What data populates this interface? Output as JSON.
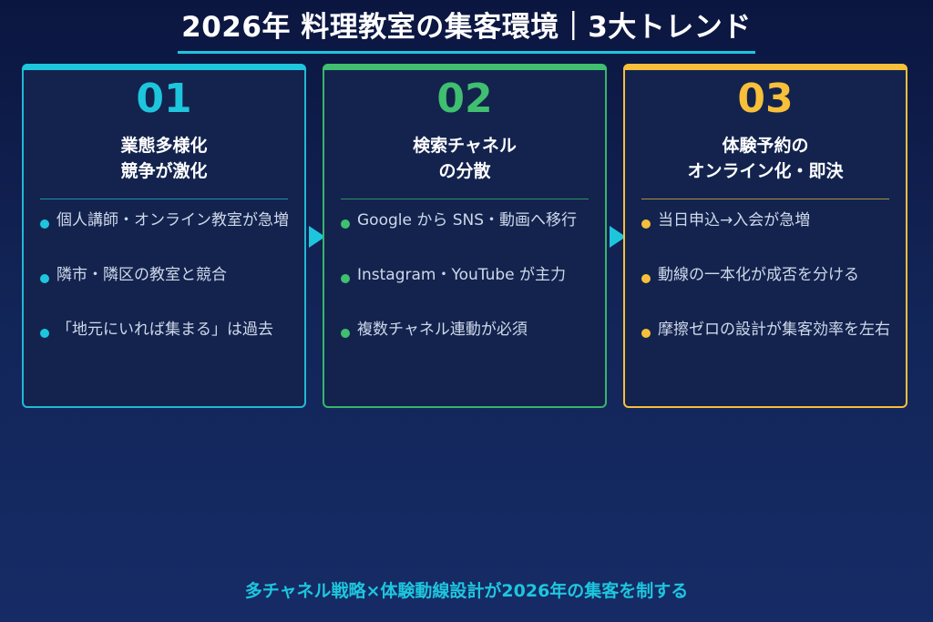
{
  "title": "2026年 料理教室の集客環境｜3大トレンド",
  "colors": {
    "cyan": "#1ec6dd",
    "green": "#3fbf6f",
    "yellow": "#f7bf3a",
    "background": "#13265a"
  },
  "cards": [
    {
      "number": "01",
      "heading_line1": "業態多様化",
      "heading_line2": "競争が激化",
      "items": [
        "個人講師・オンライン教室が急増",
        "隣市・隣区の教室と競合",
        "「地元にいれば集まる」は過去"
      ]
    },
    {
      "number": "02",
      "heading_line1": "検索チャネル",
      "heading_line2": "の分散",
      "items": [
        "Google から SNS・動画へ移行",
        "Instagram・YouTube が主力",
        "複数チャネル連動が必須"
      ]
    },
    {
      "number": "03",
      "heading_line1": "体験予約の",
      "heading_line2": "オンライン化・即決",
      "items": [
        "当日申込→入会が急増",
        "動線の一本化が成否を分ける",
        "摩擦ゼロの設計が集客効率を左右"
      ]
    }
  ],
  "footer": "多チャネル戦略×体験動線設計が2026年の集客を制する"
}
